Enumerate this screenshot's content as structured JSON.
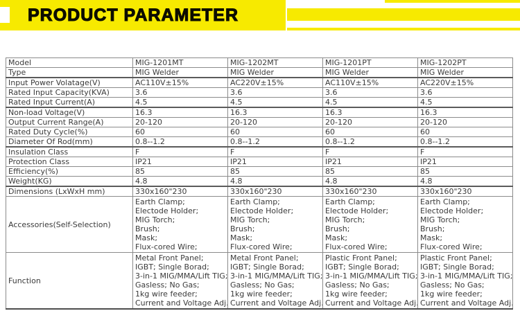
{
  "colors": {
    "banner_yellow": "#F7EA00",
    "title_ink": "#0d0d00"
  },
  "header": {
    "title": "PRODUCT PARAMETER"
  },
  "table": {
    "rows": [
      {
        "label": "Model",
        "values": [
          "MIG-1201MT",
          "MIG-1202MT",
          "MIG-1201PT",
          "MIG-1202PT"
        ]
      },
      {
        "label": "Type",
        "values": [
          "MIG Welder",
          "MIG Welder",
          "MIG Welder",
          "MIG Welder"
        ]
      },
      {
        "label": "Input Power Volatage(V)",
        "values": [
          "AC110V±15%",
          "AC220V±15%",
          "AC110V±15%",
          "AC220V±15%"
        ]
      },
      {
        "label": "Rated Input Capacity(KVA)",
        "values": [
          "3.6",
          "3.6",
          "3.6",
          "3.6"
        ]
      },
      {
        "label": "Rated Input Current(A)",
        "values": [
          "4.5",
          "4.5",
          "4.5",
          "4.5"
        ]
      },
      {
        "label": "Non-load Voltage(V)",
        "values": [
          "16.3",
          "16.3",
          "16.3",
          "16.3"
        ]
      },
      {
        "label": "Output Current Range(A)",
        "values": [
          "20-120",
          "20-120",
          "20-120",
          "20-120"
        ]
      },
      {
        "label": "Rated Duty Cycle(%)",
        "values": [
          "60",
          "60",
          "60",
          "60"
        ]
      },
      {
        "label": "Diameter Of Rod(mm)",
        "values": [
          "0.8--1.2",
          "0.8--1.2",
          "0.8--1.2",
          "0.8--1.2"
        ]
      },
      {
        "label": "Insulation Class",
        "values": [
          "F",
          "F",
          "F",
          "F"
        ]
      },
      {
        "label": "Protection Class",
        "values": [
          "IP21",
          "IP21",
          "IP21",
          "IP21"
        ]
      },
      {
        "label": "Efficiency(%)",
        "values": [
          "85",
          "85",
          "85",
          "85"
        ]
      },
      {
        "label": "Weight(KG)",
        "values": [
          "4.8",
          "4.8",
          "4.8",
          "4.8"
        ]
      },
      {
        "label": "Dimensions (LxWxH mm)",
        "values": [
          "330x160\"230",
          "330x160\"230",
          "330x160\"230",
          "330x160\"230"
        ]
      },
      {
        "label": "Accessories(Self-Selection)",
        "values": [
          [
            "Earth Clamp;",
            "Electode Holder;",
            "MIG Torch;",
            "Brush;",
            "Mask;",
            "Flux-cored Wire;"
          ],
          [
            "Earth Clamp;",
            "Electode Holder;",
            "MIG Torch;",
            "Brush;",
            "Mask;",
            "Flux-cored Wire;"
          ],
          [
            "Earth Clamp;",
            "Electode Holder;",
            "MIG Torch;",
            "Brush;",
            "Mask;",
            "Flux-cored Wire;"
          ],
          [
            "Earth Clamp;",
            "Electode Holder;",
            "MIG Torch;",
            "Brush;",
            "Mask;",
            "Flux-cored Wire;"
          ]
        ]
      },
      {
        "label": "Function",
        "values": [
          [
            "Metal Front Panel;",
            "IGBT; Single Borad;",
            "3-in-1 MIG/MMA/Lift TIG;",
            "Gasless; No Gas;",
            "1kg wire feeder;",
            "Current and Voltage Adj."
          ],
          [
            "Metal Front Panel;",
            "IGBT; Single Borad;",
            "3-in-1 MIG/MMA/Lift TIG;",
            "Gasless; No Gas;",
            "1kg wire feeder;",
            "Current and Voltage Adj."
          ],
          [
            "Plastic Front Panel;",
            "IGBT; Single Borad;",
            "3-in-1 MIG/MMA/Lift TIG;",
            "Gasless; No Gas;",
            "1kg wire feeder;",
            "Current and Voltage Adj."
          ],
          [
            "Plastic Front Panel;",
            "IGBT; Single Borad;",
            "3-in-1 MIG/MMA/Lift TIG;",
            "Gasless; No Gas;",
            "1kg wire feeder;",
            "Current and Voltage Adj."
          ]
        ]
      }
    ]
  }
}
